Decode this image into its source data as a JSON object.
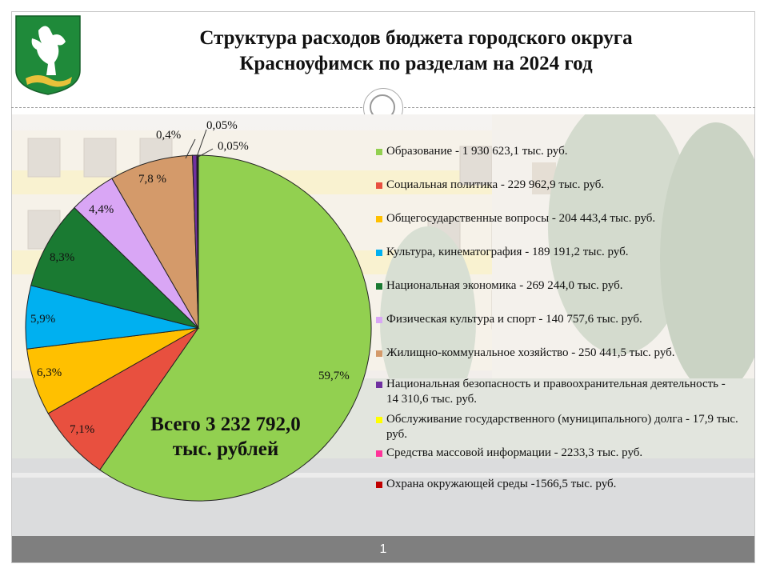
{
  "header": {
    "title_line1": "Структура расходов бюджета городского округа",
    "title_line2": "Красноуфимск по разделам на 2024 год"
  },
  "footer": {
    "page_number": "1"
  },
  "chart_data": {
    "type": "pie",
    "title": "Структура расходов бюджета городского округа Красноуфимск по разделам на 2024 год",
    "total_label_line1": "Всего 3 232 792,0",
    "total_label_line2": "тыс. рублей",
    "legend_position": "right",
    "slices": [
      {
        "value": 59.7,
        "label": "59,7%",
        "color": "#92d050",
        "legend": "Образование - 1 930 623,1 тыс. руб."
      },
      {
        "value": 7.1,
        "label": "7,1%",
        "color": "#e8503f",
        "legend": "Социальная политика - 229 962,9 тыс. руб."
      },
      {
        "value": 6.3,
        "label": "6,3%",
        "color": "#ffc000",
        "legend": "Общегосударственные вопросы - 204 443,4 тыс. руб."
      },
      {
        "value": 5.9,
        "label": "5,9%",
        "color": "#00b0f0",
        "legend": "Культура, кинематография - 189 191,2 тыс. руб."
      },
      {
        "value": 8.3,
        "label": "8,3%",
        "color": "#1a7a32",
        "legend": "Национальная экономика - 269 244,0 тыс. руб."
      },
      {
        "value": 4.4,
        "label": "4,4%",
        "color": "#d9a6f5",
        "legend": "Физическая культура и спорт - 140 757,6 тыс. руб."
      },
      {
        "value": 7.8,
        "label": "7,8 %",
        "color": "#d49a6a",
        "legend": "Жилищно-коммунальное хозяйство - 250 441,5 тыс. руб."
      },
      {
        "value": 0.4,
        "label": "0,4%",
        "color": "#7030a0",
        "legend": "Национальная безопасность и правоохранительная деятельность - 14 310,6 тыс. руб."
      },
      {
        "value": 0.05,
        "label": "0,05%",
        "color": "#ffff00",
        "legend": "Обслуживание государственного (муниципального) долга - 17,9 тыс. руб."
      },
      {
        "value": 0.05,
        "label": "0,05%",
        "color": "#ff3399",
        "legend": "Средства массовой информации - 2233,3 тыс. руб."
      },
      {
        "value": 0.05,
        "label": "",
        "color": "#c00000",
        "legend": "Охрана окружающей среды -1566,5 тыс. руб."
      }
    ]
  }
}
